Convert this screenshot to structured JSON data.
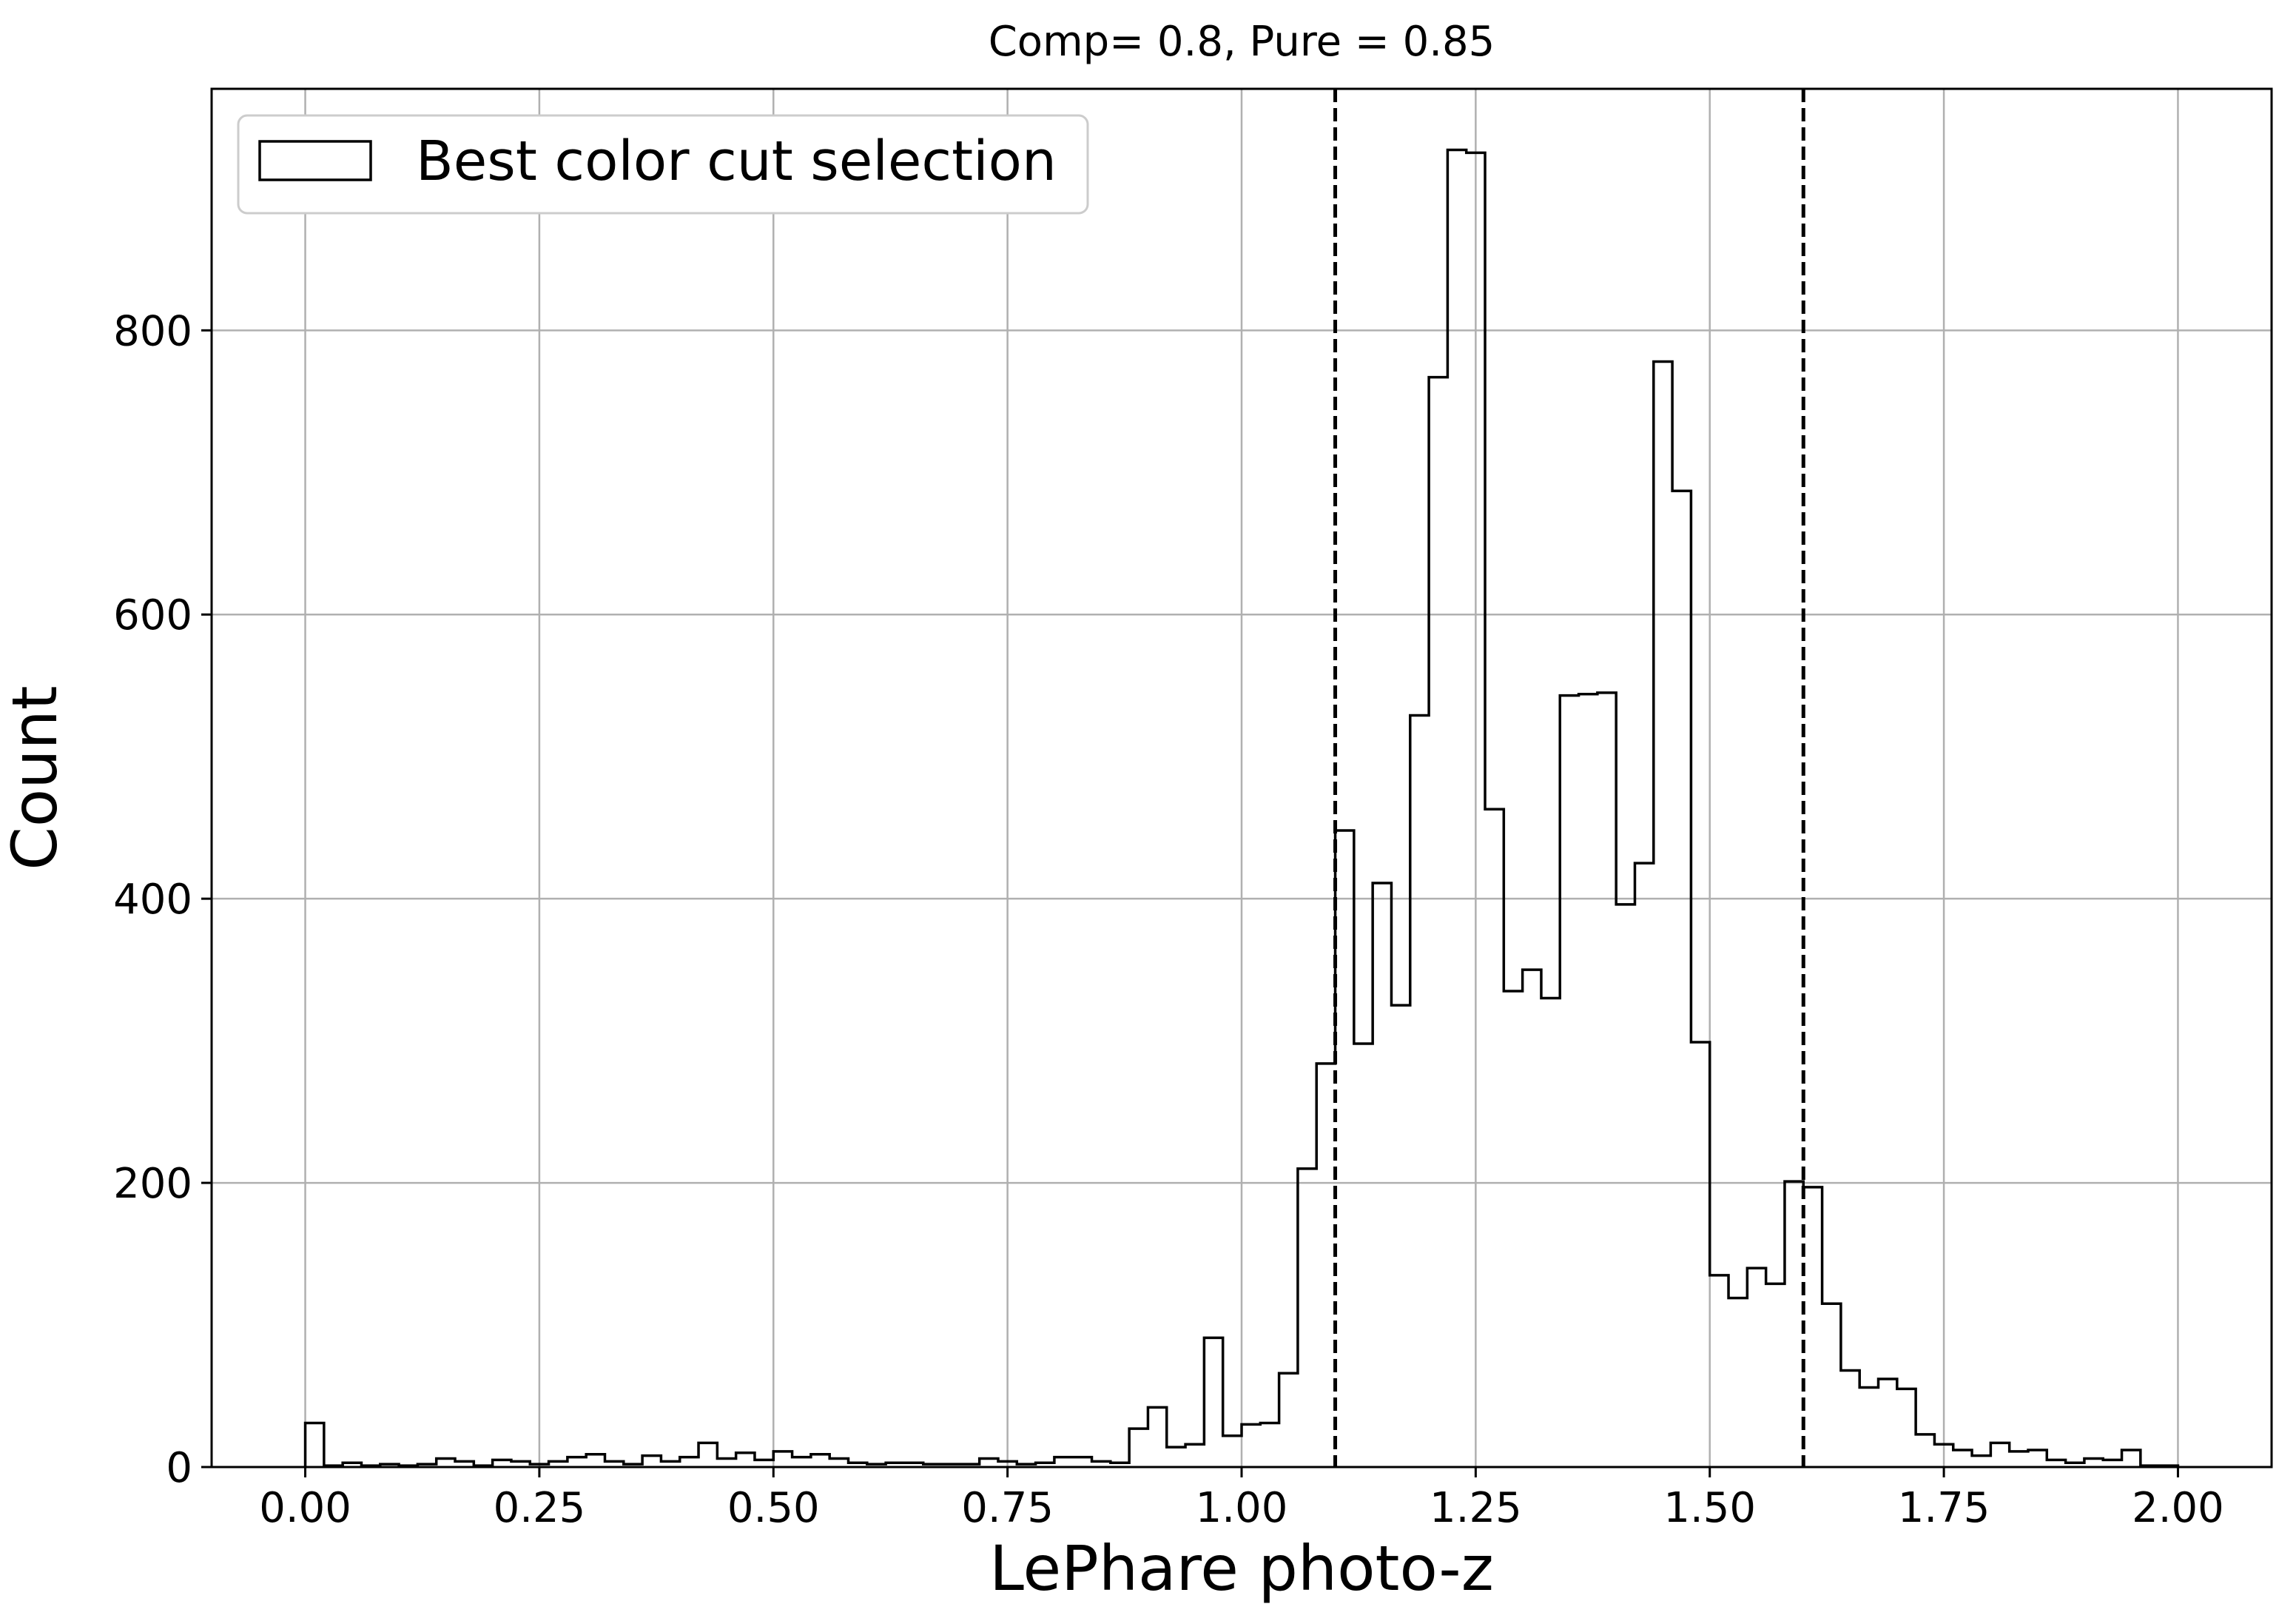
{
  "chart_data": {
    "type": "histogram",
    "title": "Comp= 0.8, Pure = 0.85",
    "xlabel": "LePhare photo-z",
    "ylabel": "Count",
    "xlim": [
      -0.1,
      2.1
    ],
    "ylim": [
      0,
      970
    ],
    "xticks": [
      0.0,
      0.25,
      0.5,
      0.75,
      1.0,
      1.25,
      1.5,
      1.75,
      2.0
    ],
    "xtick_labels": [
      "0.00",
      "0.25",
      "0.50",
      "0.75",
      "1.00",
      "1.25",
      "1.50",
      "1.75",
      "2.00"
    ],
    "yticks": [
      0,
      200,
      400,
      600,
      800
    ],
    "ytick_labels": [
      "0",
      "200",
      "400",
      "600",
      "800"
    ],
    "grid": true,
    "legend": {
      "position": "upper-left",
      "entries": [
        "Best color cut selection"
      ]
    },
    "series": [
      {
        "name": "Best color cut selection",
        "style": "step",
        "color": "#000000",
        "bin_edges": [
          0.0,
          0.02,
          0.04,
          0.06,
          0.08,
          0.1,
          0.12,
          0.14,
          0.16,
          0.18,
          0.2,
          0.22,
          0.24,
          0.26,
          0.28,
          0.3,
          0.32,
          0.34,
          0.36,
          0.38,
          0.4,
          0.42,
          0.44,
          0.46,
          0.48,
          0.5,
          0.52,
          0.54,
          0.56,
          0.58,
          0.6,
          0.62,
          0.64,
          0.66,
          0.68,
          0.7,
          0.72,
          0.74,
          0.76,
          0.78,
          0.8,
          0.82,
          0.84,
          0.86,
          0.88,
          0.9,
          0.92,
          0.94,
          0.96,
          0.98,
          1.0,
          1.02,
          1.04,
          1.06,
          1.08,
          1.1,
          1.12,
          1.14,
          1.16,
          1.18,
          1.2,
          1.22,
          1.24,
          1.26,
          1.28,
          1.3,
          1.32,
          1.34,
          1.36,
          1.38,
          1.4,
          1.42,
          1.44,
          1.46,
          1.48,
          1.5,
          1.52,
          1.54,
          1.56,
          1.58,
          1.6,
          1.62,
          1.64,
          1.66,
          1.68,
          1.7,
          1.72,
          1.74,
          1.76,
          1.78,
          1.8,
          1.82,
          1.84,
          1.86,
          1.88,
          1.9,
          1.92,
          1.94,
          1.96,
          1.98,
          2.0
        ],
        "counts": [
          31,
          1,
          3,
          1,
          2,
          1,
          2,
          6,
          4,
          1,
          5,
          4,
          2,
          4,
          7,
          9,
          4,
          2,
          8,
          4,
          7,
          17,
          6,
          10,
          5,
          11,
          7,
          9,
          6,
          3,
          2,
          3,
          3,
          2,
          2,
          2,
          6,
          4,
          2,
          3,
          7,
          7,
          4,
          3,
          27,
          42,
          14,
          16,
          91,
          22,
          30,
          31,
          66,
          210,
          284,
          448,
          298,
          411,
          325,
          529,
          767,
          927,
          925,
          463,
          335,
          350,
          330,
          543,
          544,
          545,
          396,
          425,
          778,
          687,
          299,
          135,
          119,
          140,
          129,
          201,
          197,
          115,
          68,
          56,
          62,
          55,
          23,
          16,
          12,
          8,
          17,
          11,
          12,
          5,
          3,
          6,
          5,
          12,
          1,
          1
        ]
      }
    ],
    "vlines": [
      {
        "x": 1.1,
        "style": "dashed",
        "color": "#000000"
      },
      {
        "x": 1.6,
        "style": "dashed",
        "color": "#000000"
      }
    ],
    "colors": {
      "line": "#000000",
      "grid": "#b0b0b0",
      "background": "#ffffff"
    }
  }
}
